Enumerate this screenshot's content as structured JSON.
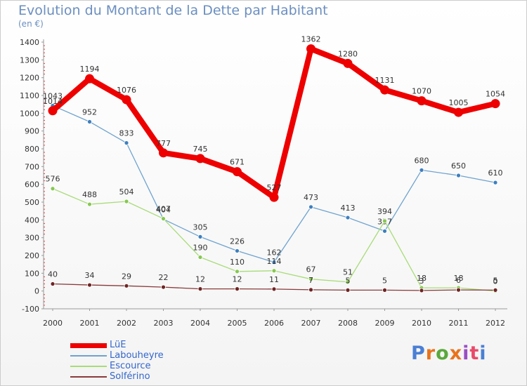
{
  "page": {
    "title": "Evolution du Montant de la Dette par Habitant",
    "subtitle": "(en €)",
    "brand": "Proxiti",
    "brand_colors": [
      "#4a7fd4",
      "#e8731c",
      "#5aa83c",
      "#e8731c",
      "#9a4fc4",
      "#e84a6a",
      "#4a7fd4"
    ]
  },
  "chart_data": {
    "type": "line",
    "title": "Evolution du Montant de la Dette par Habitant",
    "subtitle": "(en €)",
    "xlabel": "",
    "ylabel": "",
    "categories": [
      "2000",
      "2001",
      "2002",
      "2003",
      "2004",
      "2005",
      "2006",
      "2007",
      "2008",
      "2009",
      "2010",
      "2011",
      "2012"
    ],
    "ylim": [
      -100,
      1400
    ],
    "yticks": [
      -100,
      0,
      100,
      200,
      300,
      400,
      500,
      600,
      700,
      800,
      900,
      1000,
      1100,
      1200,
      1300,
      1400
    ],
    "grid": false,
    "legend_position": "bottom-left",
    "series": [
      {
        "name": "Labouheyre",
        "color": "#6fa3cf",
        "marker": "#3d7fbf",
        "values": [
          1043,
          952,
          833,
          404,
          305,
          226,
          162,
          473,
          413,
          337,
          680,
          650,
          610
        ],
        "labels": [
          "1043",
          "952",
          "833",
          "404",
          "305",
          "226",
          "162",
          "473",
          "413",
          "337",
          "680",
          "650",
          "610"
        ]
      },
      {
        "name": "Escource",
        "color": "#a8dc78",
        "marker": "#86c850",
        "values": [
          576,
          488,
          504,
          407,
          190,
          110,
          114,
          67,
          51,
          394,
          18,
          18,
          0
        ],
        "labels": [
          "576",
          "488",
          "504",
          "407",
          "190",
          "110",
          "114",
          "67",
          "51",
          "394",
          "18",
          "18",
          "0"
        ]
      },
      {
        "name": "Solférino",
        "color": "#8a3a3a",
        "marker": "#6e2424",
        "values": [
          40,
          34,
          29,
          22,
          12,
          12,
          11,
          7,
          5,
          5,
          3,
          6,
          5
        ],
        "labels": [
          "40",
          "34",
          "29",
          "22",
          "12",
          "12",
          "11",
          "7",
          "5",
          "5",
          "3",
          "6",
          "5"
        ]
      },
      {
        "name": "LüE",
        "color": "#ee0000",
        "marker": "#ee0000",
        "thick": true,
        "values": [
          1014,
          1194,
          1076,
          777,
          745,
          671,
          527,
          1362,
          1280,
          1131,
          1070,
          1005,
          1054
        ],
        "labels": [
          "1014",
          "1194",
          "1076",
          "777",
          "745",
          "671",
          "527",
          "1362",
          "1280",
          "1131",
          "1070",
          "1005",
          "1054"
        ]
      }
    ],
    "legend": [
      "LüE",
      "Labouheyre",
      "Escource",
      "Solférino"
    ]
  }
}
